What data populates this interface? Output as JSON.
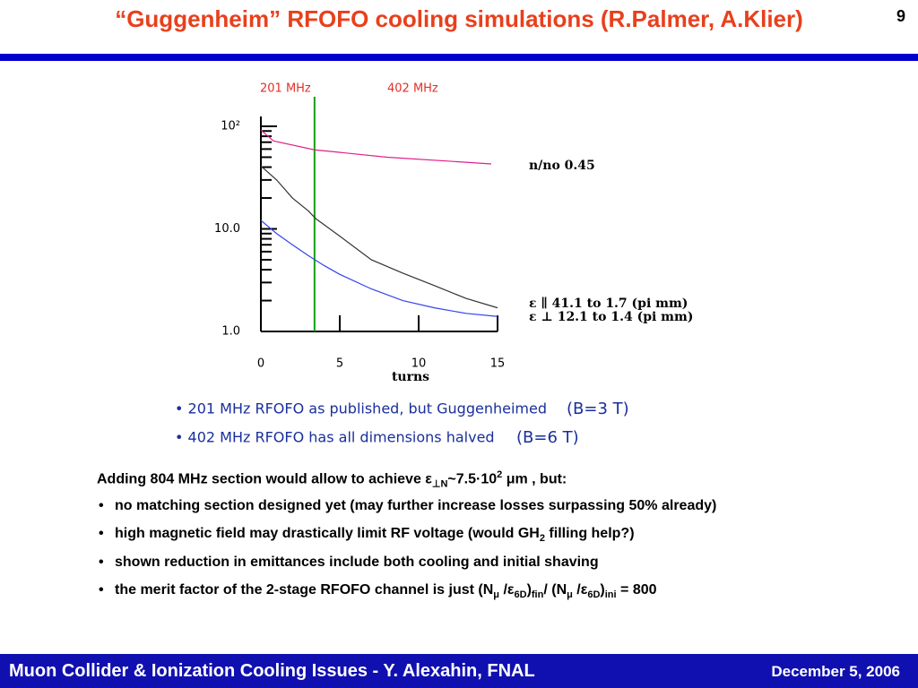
{
  "title": "“Guggenheim” RFOFO cooling simulations (R.Palmer, A.Klier)",
  "page_number": "9",
  "chart_data": {
    "type": "line",
    "annotations": [
      {
        "text": "201 MHz",
        "color": "#e0302a"
      },
      {
        "text": "402 MHz",
        "color": "#e0302a"
      }
    ],
    "vline": {
      "x": 3.4,
      "color": "#11a011"
    },
    "xlabel": "turns",
    "xlim": [
      0,
      15
    ],
    "xticks": [
      0,
      5,
      10,
      15
    ],
    "ylim": [
      1,
      100
    ],
    "log_y": true,
    "yticks": [
      {
        "value": 1,
        "label": "1.0"
      },
      {
        "value": 10,
        "label": "10.0"
      },
      {
        "value": 100,
        "label": "10²"
      }
    ],
    "yticks_minor": [
      2,
      3,
      4,
      5,
      6,
      7,
      8,
      9,
      20,
      30,
      40,
      50,
      60,
      70,
      80,
      90
    ],
    "series": [
      {
        "name": "n/no 0.45",
        "color": "#e0208a",
        "x": [
          0,
          0.8,
          3.4,
          8,
          14.6
        ],
        "values": [
          92,
          72,
          59,
          50,
          43
        ]
      },
      {
        "name": "ε ∥ 41.1 to 1.7 (pi mm)",
        "color": "#333333",
        "x": [
          0,
          1,
          2,
          3,
          3.5,
          4,
          5,
          7,
          9,
          11,
          13,
          15
        ],
        "values": [
          41,
          30,
          20,
          15,
          12.5,
          11,
          8.5,
          5,
          3.7,
          2.8,
          2.1,
          1.7
        ]
      },
      {
        "name": "ε ⊥ 12.1 to 1.4 (pi mm)",
        "color": "#3344ee",
        "x": [
          0,
          1,
          2,
          3,
          4,
          5,
          7,
          9,
          11,
          13,
          15
        ],
        "values": [
          12.1,
          9,
          7,
          5.5,
          4.4,
          3.6,
          2.6,
          2.0,
          1.7,
          1.5,
          1.4
        ]
      }
    ]
  },
  "chart_notes": [
    {
      "text": "• 201 MHz RFOFO as published, but Guggenheimed",
      "field": "(B=3 T)"
    },
    {
      "text": "• 402 MHz RFOFO has all dimensions halved",
      "field": "(B=6 T)"
    }
  ],
  "lines": [
    [
      {
        "t": "Adding 804 MHz section would allow to achieve ε"
      },
      {
        "sub": "⊥N"
      },
      {
        "t": "~7.5·10"
      },
      {
        "sup": "2"
      },
      {
        "t": " μm , but:"
      }
    ],
    [
      {
        "t": "no matching section designed yet (may further increase losses surpassing 50% already)"
      }
    ],
    [
      {
        "t": "high magnetic field may drastically limit RF voltage (would GH"
      },
      {
        "sub": "2"
      },
      {
        "t": " filling help?)"
      }
    ],
    [
      {
        "t": "shown reduction in emittances include both cooling and initial shaving"
      }
    ],
    [
      {
        "t": "the merit factor of the 2-stage RFOFO channel is just (N"
      },
      {
        "sub": "μ"
      },
      {
        "t": " /ε"
      },
      {
        "sub": "6D"
      },
      {
        "t": ")"
      },
      {
        "sub": "fin"
      },
      {
        "t": "/ (N"
      },
      {
        "sub": "μ"
      },
      {
        "t": " /ε"
      },
      {
        "sub": "6D"
      },
      {
        "t": ")"
      },
      {
        "sub": "ini"
      },
      {
        "t": " = 800"
      }
    ]
  ],
  "footer": {
    "left": "Muon Collider & Ionization Cooling Issues  - Y. Alexahin, FNAL",
    "right": "December 5, 2006"
  }
}
